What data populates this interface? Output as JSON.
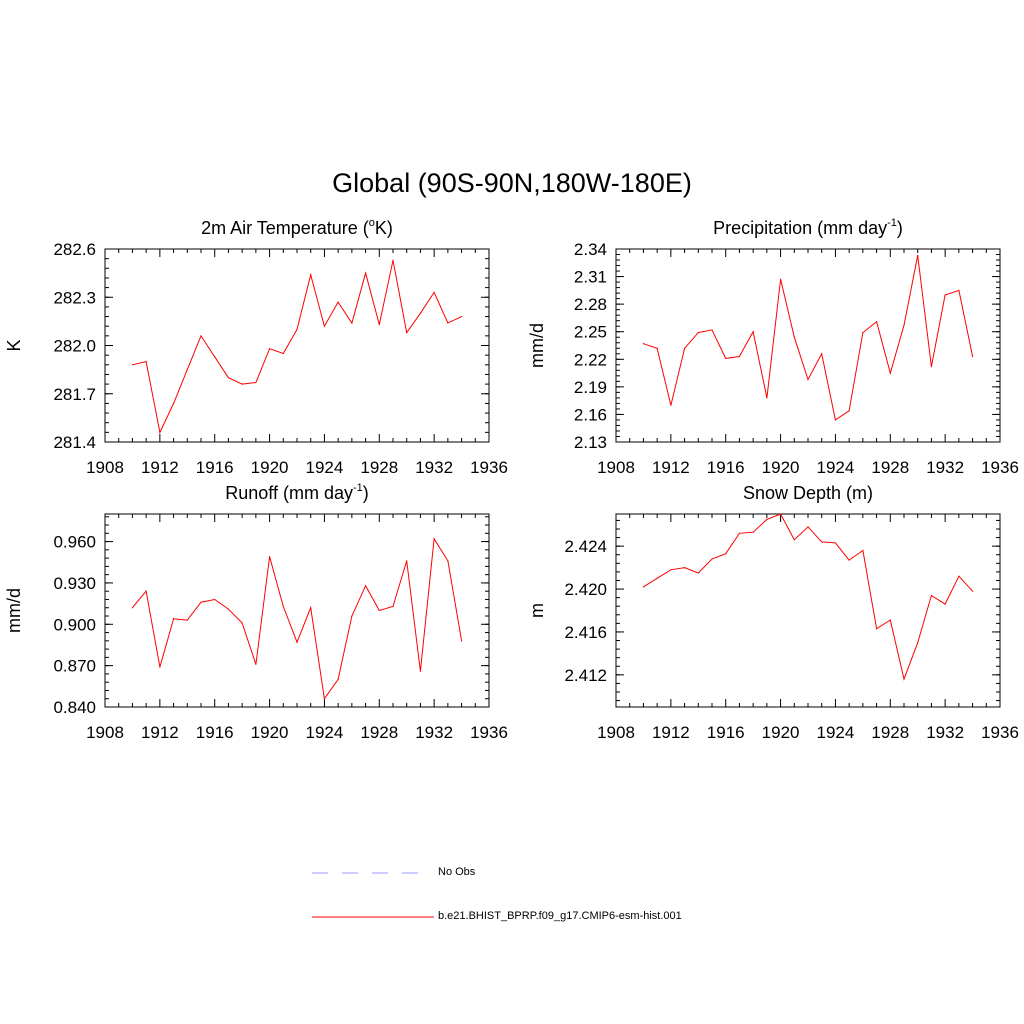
{
  "figure": {
    "title": "Global (90S-90N,180W-180E)"
  },
  "panels": [
    {
      "title": "2m Air Temperature (",
      "title_sup": "o",
      "title_tail": "K)"
    },
    {
      "title": "Precipitation (mm day",
      "title_sup": "-1",
      "title_tail": ")"
    },
    {
      "title": "Runoff (mm day",
      "title_sup": "-1",
      "title_tail": ")"
    },
    {
      "title": "Snow Depth (m)",
      "title_sup": "",
      "title_tail": ""
    }
  ],
  "legend": {
    "items": [
      {
        "label": "No Obs",
        "color": "#9999ff",
        "style": "dashed"
      },
      {
        "label": "b.e21.BHIST_BPRP.f09_g17.CMIP6-esm-hist.001",
        "color": "#ff0000",
        "style": "solid"
      }
    ]
  },
  "chart_data": [
    {
      "type": "line",
      "title": "2m Air Temperature (oK)",
      "ylabel": "K",
      "xlim": [
        1908,
        1936
      ],
      "ylim": [
        281.4,
        282.6
      ],
      "xticks": [
        "1908",
        "1912",
        "1916",
        "1920",
        "1924",
        "1928",
        "1932",
        "1936"
      ],
      "yticks": [
        "281.4",
        "281.7",
        "282.0",
        "282.3",
        "282.6"
      ],
      "color": "#ff0000",
      "series": [
        {
          "x": [
            1910,
            1911,
            1912,
            1913,
            1914,
            1915,
            1916,
            1917,
            1918,
            1919,
            1920,
            1921,
            1922,
            1923,
            1924,
            1925,
            1926,
            1927,
            1928,
            1929,
            1930,
            1931,
            1932,
            1933,
            1934
          ],
          "values": [
            281.88,
            281.9,
            281.46,
            281.64,
            281.85,
            282.06,
            281.93,
            281.8,
            281.76,
            281.77,
            281.98,
            281.95,
            282.1,
            282.44,
            282.12,
            282.27,
            282.14,
            282.45,
            282.13,
            282.53,
            282.08,
            282.2,
            282.33,
            282.14,
            282.18
          ]
        }
      ]
    },
    {
      "type": "line",
      "title": "Precipitation (mm day-1)",
      "ylabel": "mm/d",
      "xlim": [
        1908,
        1936
      ],
      "ylim": [
        2.13,
        2.34
      ],
      "xticks": [
        "1908",
        "1912",
        "1916",
        "1920",
        "1924",
        "1928",
        "1932",
        "1936"
      ],
      "yticks": [
        "2.13",
        "2.16",
        "2.19",
        "2.22",
        "2.25",
        "2.28",
        "2.31",
        "2.34"
      ],
      "color": "#ff0000",
      "series": [
        {
          "x": [
            1910,
            1911,
            1912,
            1913,
            1914,
            1915,
            1916,
            1917,
            1918,
            1919,
            1920,
            1921,
            1922,
            1923,
            1924,
            1925,
            1926,
            1927,
            1928,
            1929,
            1930,
            1931,
            1932,
            1933,
            1934
          ],
          "values": [
            2.237,
            2.232,
            2.17,
            2.232,
            2.249,
            2.252,
            2.221,
            2.223,
            2.25,
            2.178,
            2.307,
            2.244,
            2.198,
            2.226,
            2.154,
            2.164,
            2.249,
            2.261,
            2.205,
            2.257,
            2.333,
            2.212,
            2.29,
            2.295,
            2.223
          ]
        }
      ]
    },
    {
      "type": "line",
      "title": "Runoff (mm day-1)",
      "ylabel": "mm/d",
      "xlim": [
        1908,
        1936
      ],
      "ylim": [
        0.84,
        0.98
      ],
      "xticks": [
        "1908",
        "1912",
        "1916",
        "1920",
        "1924",
        "1928",
        "1932",
        "1936"
      ],
      "yticks": [
        "0.840",
        "0.870",
        "0.900",
        "0.930",
        "0.960"
      ],
      "color": "#ff0000",
      "series": [
        {
          "x": [
            1910,
            1911,
            1912,
            1913,
            1914,
            1915,
            1916,
            1917,
            1918,
            1919,
            1920,
            1921,
            1922,
            1923,
            1924,
            1925,
            1926,
            1927,
            1928,
            1929,
            1930,
            1931,
            1932,
            1933,
            1934
          ],
          "values": [
            0.912,
            0.924,
            0.869,
            0.904,
            0.903,
            0.916,
            0.918,
            0.911,
            0.901,
            0.871,
            0.949,
            0.913,
            0.887,
            0.912,
            0.846,
            0.86,
            0.906,
            0.928,
            0.91,
            0.913,
            0.946,
            0.866,
            0.962,
            0.946,
            0.888
          ]
        }
      ]
    },
    {
      "type": "line",
      "title": "Snow Depth (m)",
      "ylabel": "m",
      "xlim": [
        1908,
        1936
      ],
      "ylim": [
        2.409,
        2.427
      ],
      "xticks": [
        "1908",
        "1912",
        "1916",
        "1920",
        "1924",
        "1928",
        "1932",
        "1936"
      ],
      "yticks": [
        "2.412",
        "2.416",
        "2.420",
        "2.424"
      ],
      "color": "#ff0000",
      "series": [
        {
          "x": [
            1910,
            1911,
            1912,
            1913,
            1914,
            1915,
            1916,
            1917,
            1918,
            1919,
            1920,
            1921,
            1922,
            1923,
            1924,
            1925,
            1926,
            1927,
            1928,
            1929,
            1930,
            1931,
            1932,
            1933,
            1934
          ],
          "values": [
            2.4202,
            2.421,
            2.4218,
            2.422,
            2.4215,
            2.4228,
            2.4233,
            2.4252,
            2.4253,
            2.4265,
            2.427,
            2.4246,
            2.4258,
            2.4244,
            2.4243,
            2.4227,
            2.4236,
            2.4163,
            2.4171,
            2.4116,
            2.415,
            2.4194,
            2.4186,
            2.4212,
            2.4198
          ]
        }
      ]
    }
  ]
}
